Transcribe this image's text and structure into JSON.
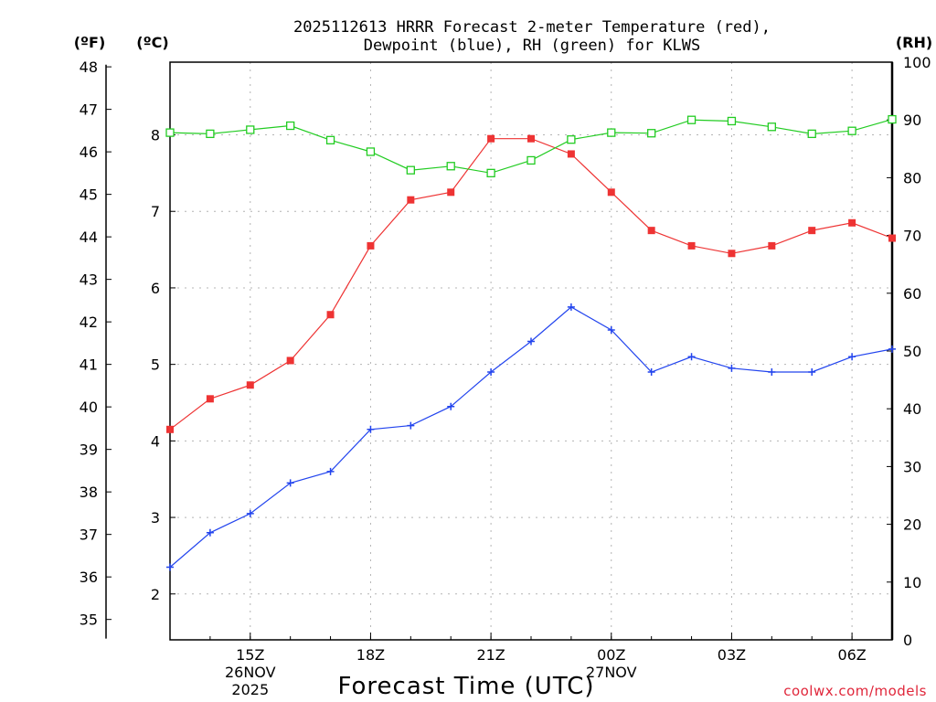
{
  "chart_data": {
    "type": "line",
    "title": {
      "line1": "2025112613 HRRR Forecast 2-meter Temperature (red),",
      "line2": "Dewpoint (blue), RH (green) for KLWS"
    },
    "xlabel": "Forecast Time (UTC)",
    "watermark": "coolwx.com/models",
    "units": {
      "fahrenheit": "(ºF)",
      "celsius": "(ºC)",
      "rh": "(RH)"
    },
    "x_hours": [
      13,
      14,
      15,
      16,
      17,
      18,
      19,
      20,
      21,
      22,
      23,
      24,
      25,
      26,
      27,
      28,
      29,
      30,
      31
    ],
    "xlim": [
      13,
      31
    ],
    "x_ticks": [
      {
        "hour": 15,
        "label": "15Z",
        "sub1": "26NOV",
        "sub2": "2025"
      },
      {
        "hour": 18,
        "label": "18Z"
      },
      {
        "hour": 21,
        "label": "21Z"
      },
      {
        "hour": 24,
        "label": "00Z",
        "sub1": "27NOV"
      },
      {
        "hour": 27,
        "label": "03Z"
      },
      {
        "hour": 30,
        "label": "06Z"
      }
    ],
    "celsius_axis": {
      "min": 1.4,
      "max": 8.95,
      "ticks": [
        2,
        3,
        4,
        5,
        6,
        7,
        8
      ]
    },
    "fahrenheit_axis": {
      "ticks": [
        35,
        36,
        37,
        38,
        39,
        40,
        41,
        42,
        43,
        44,
        45,
        46,
        47,
        48
      ]
    },
    "rh_axis": {
      "min": 0,
      "max": 100,
      "ticks": [
        0,
        10,
        20,
        30,
        40,
        50,
        60,
        70,
        80,
        90,
        100
      ]
    },
    "series": [
      {
        "name": "Temperature",
        "color": "#ee3333",
        "marker": "filled-square",
        "axis": "celsius",
        "values": [
          4.15,
          4.55,
          4.73,
          5.05,
          5.65,
          6.55,
          7.15,
          7.25,
          7.95,
          7.95,
          7.75,
          7.25,
          6.75,
          6.55,
          6.45,
          6.55,
          6.75,
          6.85,
          6.65
        ]
      },
      {
        "name": "Dewpoint",
        "color": "#2244ee",
        "marker": "plus",
        "axis": "celsius",
        "values": [
          2.35,
          2.8,
          3.05,
          3.45,
          3.6,
          4.15,
          4.2,
          4.45,
          4.9,
          5.3,
          5.75,
          5.45,
          4.9,
          5.1,
          4.95,
          4.9,
          4.9,
          5.1,
          5.2
        ]
      },
      {
        "name": "RH",
        "color": "#22cc22",
        "marker": "open-square",
        "axis": "rh",
        "values": [
          87.8,
          87.6,
          88.3,
          89.0,
          86.5,
          84.5,
          81.3,
          82.0,
          80.8,
          83.0,
          86.6,
          87.8,
          87.7,
          90.0,
          89.8,
          88.8,
          87.6,
          88.1,
          90.1
        ]
      }
    ]
  }
}
